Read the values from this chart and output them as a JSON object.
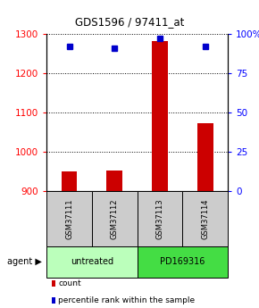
{
  "title": "GDS1596 / 97411_at",
  "samples": [
    "GSM37111",
    "GSM37112",
    "GSM37113",
    "GSM37114"
  ],
  "counts": [
    950,
    951,
    1282,
    1072
  ],
  "percentiles": [
    92,
    91,
    97,
    92
  ],
  "ylim_left": [
    900,
    1300
  ],
  "ylim_right": [
    0,
    100
  ],
  "yticks_left": [
    900,
    1000,
    1100,
    1200,
    1300
  ],
  "yticks_right": [
    0,
    25,
    50,
    75,
    100
  ],
  "yticklabels_right": [
    "0",
    "25",
    "50",
    "75",
    "100%"
  ],
  "bar_color": "#cc0000",
  "dot_color": "#0000cc",
  "agent_groups": [
    {
      "label": "untreated",
      "color": "#bbffbb",
      "samples": [
        0,
        1
      ]
    },
    {
      "label": "PD169316",
      "color": "#44dd44",
      "samples": [
        2,
        3
      ]
    }
  ],
  "sample_box_color": "#cccccc",
  "legend_items": [
    {
      "label": "count",
      "color": "#cc0000"
    },
    {
      "label": "percentile rank within the sample",
      "color": "#0000cc"
    }
  ],
  "bar_width": 0.35
}
